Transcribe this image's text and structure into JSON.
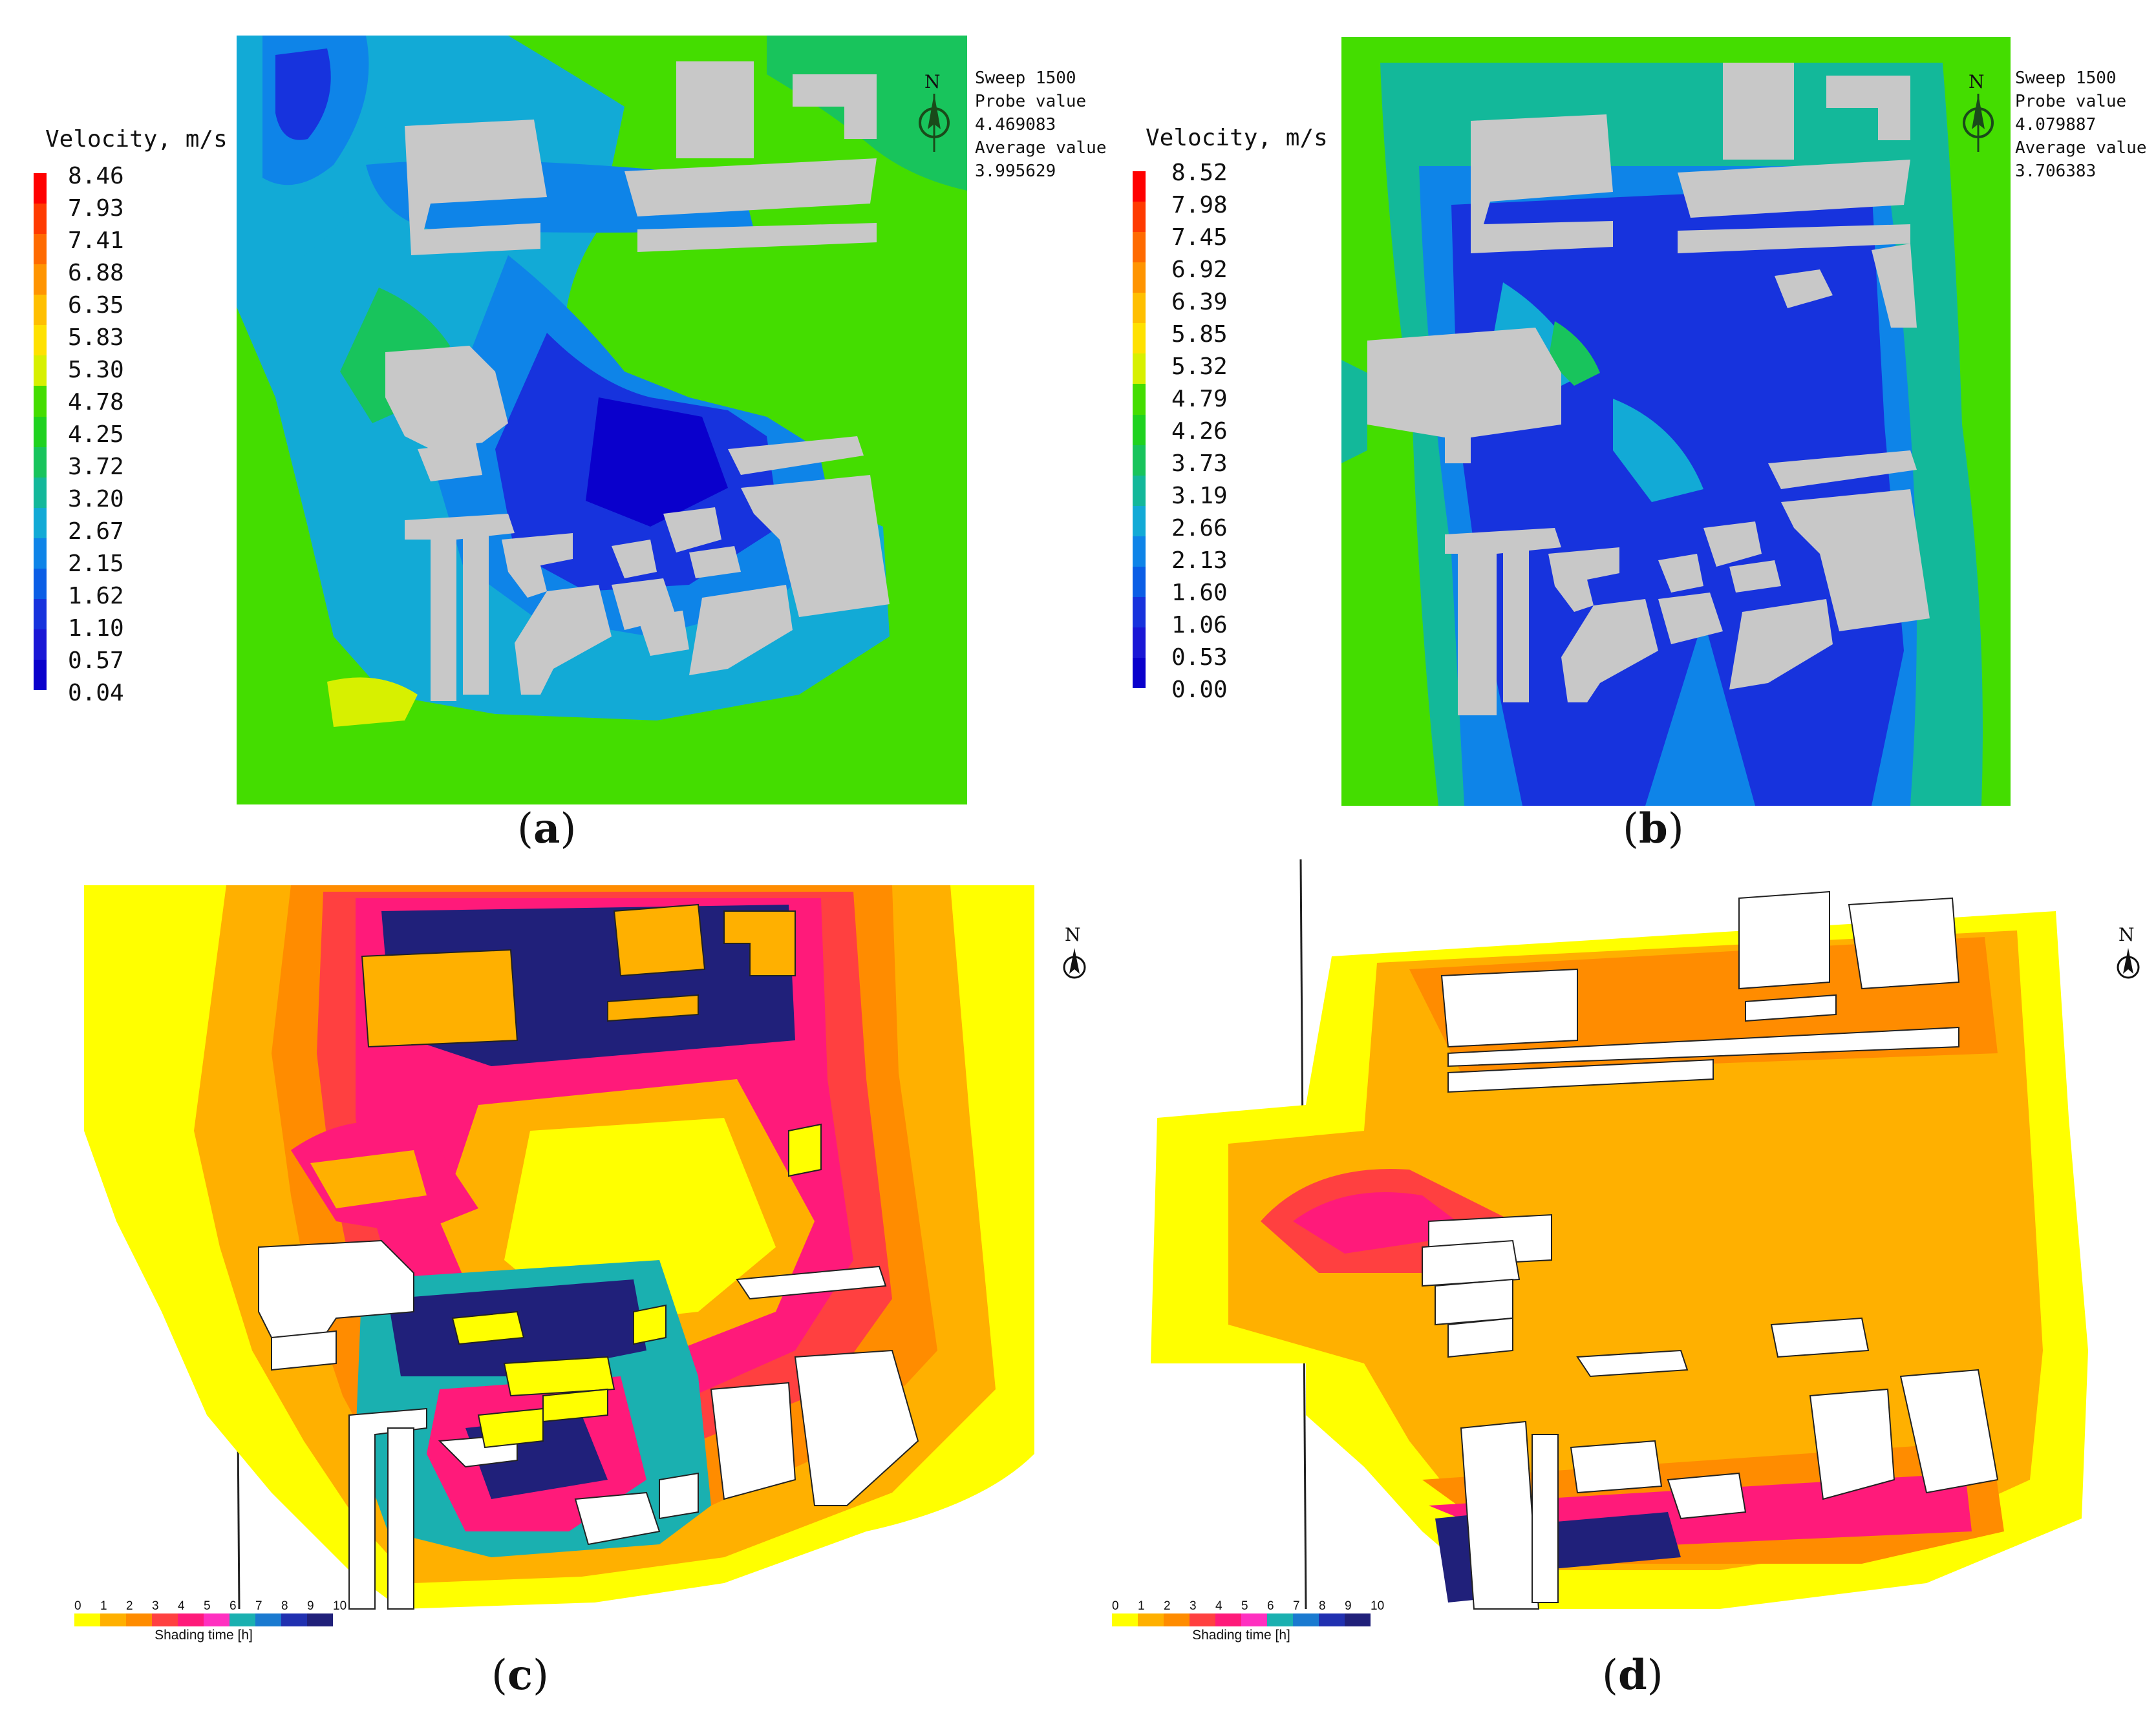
{
  "panel_a": {
    "legend_title": "Velocity, m/s",
    "legend_values": [
      "8.46",
      "7.93",
      "7.41",
      "6.88",
      "6.35",
      "5.83",
      "5.30",
      "4.78",
      "4.25",
      "3.72",
      "3.20",
      "2.67",
      "2.15",
      "1.62",
      "1.10",
      "0.57",
      "0.04"
    ],
    "sweep": "Sweep 1500",
    "probe_label": "Probe value",
    "probe_value": "4.469083",
    "average_label": "Average value",
    "average_value": "3.995629",
    "north": "N",
    "caption": "a"
  },
  "panel_b": {
    "legend_title": "Velocity, m/s",
    "legend_values": [
      "8.52",
      "7.98",
      "7.45",
      "6.92",
      "6.39",
      "5.85",
      "5.32",
      "4.79",
      "4.26",
      "3.73",
      "3.19",
      "2.66",
      "2.13",
      "1.60",
      "1.06",
      "0.53",
      "0.00"
    ],
    "sweep": "Sweep 1500",
    "probe_label": "Probe value",
    "probe_value": "4.079887",
    "average_label": "Average value",
    "average_value": "3.706383",
    "north": "N",
    "caption": "b"
  },
  "panel_c": {
    "shade_ticks": [
      "0",
      "1",
      "2",
      "3",
      "4",
      "5",
      "6",
      "7",
      "8",
      "9",
      "10"
    ],
    "shade_title": "Shading time [h]",
    "north": "N",
    "caption": "c"
  },
  "panel_d": {
    "shade_ticks": [
      "0",
      "1",
      "2",
      "3",
      "4",
      "5",
      "6",
      "7",
      "8",
      "9",
      "10"
    ],
    "shade_title": "Shading time [h]",
    "north": "N",
    "caption": "d"
  },
  "colors": {
    "velocity_scale": [
      "#ff0000",
      "#ff3a00",
      "#ff6a00",
      "#ff9400",
      "#ffbf00",
      "#ffe100",
      "#d7f000",
      "#44dd00",
      "#1fd21f",
      "#18c45c",
      "#13b89a",
      "#12aad6",
      "#0e84e8",
      "#0b5ee6",
      "#1733dd",
      "#1a17d6",
      "#0a00cc"
    ],
    "shade_scale": [
      "#ffff00",
      "#ffb000",
      "#ff8c00",
      "#ff4040",
      "#ff1a7a",
      "#ff30c0",
      "#1ab0b0",
      "#1a7ad0",
      "#2030b0",
      "#20207a"
    ],
    "building": "#c8c8c8",
    "building_shade": "#ffffff"
  }
}
